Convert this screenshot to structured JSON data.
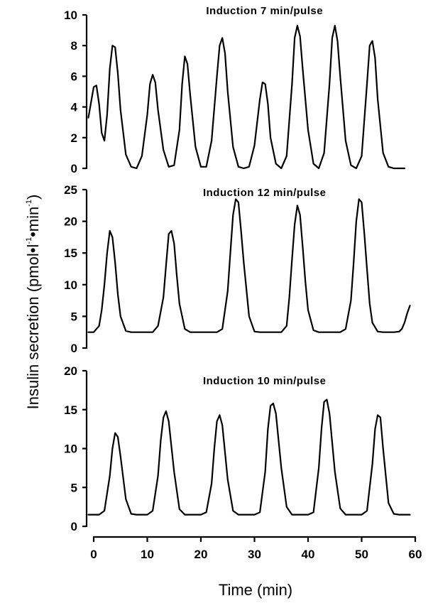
{
  "chart_data": [
    {
      "type": "line",
      "title": "Induction 7 min/pulse",
      "ylim": [
        0,
        10
      ],
      "yticks": [
        0,
        2,
        4,
        6,
        8,
        10
      ],
      "xlim": [
        -1,
        60
      ],
      "series": [
        {
          "x": [
            -1,
            0,
            0.5,
            1,
            1.5,
            2,
            2.5,
            3,
            3.5,
            4,
            4.5,
            5,
            6,
            7,
            8,
            9,
            10,
            10.5,
            11,
            11.5,
            12,
            13,
            14,
            15,
            16,
            16.5,
            17,
            17.5,
            18,
            19,
            20,
            21,
            22,
            23,
            23.5,
            24,
            24.5,
            25,
            26,
            27,
            28,
            29,
            30,
            31,
            31.5,
            32,
            32.5,
            33,
            34,
            35,
            36,
            37,
            37.5,
            38,
            38.5,
            39,
            40,
            41,
            42,
            43,
            44,
            44.5,
            45,
            45.5,
            46,
            47,
            48,
            49,
            50,
            51,
            51.5,
            52,
            52.5,
            53,
            54,
            55,
            56,
            57,
            58
          ],
          "y": [
            3.3,
            5.3,
            5.4,
            4.2,
            2.3,
            1.8,
            3.5,
            6.5,
            8.0,
            7.9,
            6.2,
            3.8,
            0.9,
            0.1,
            0.0,
            0.8,
            3.5,
            5.5,
            6.1,
            5.6,
            3.8,
            1.2,
            0.1,
            0.2,
            2.5,
            5.5,
            7.3,
            6.8,
            4.8,
            1.4,
            0.1,
            0.1,
            1.8,
            6.0,
            8.0,
            8.5,
            7.5,
            5.0,
            1.4,
            0.1,
            0.0,
            0.1,
            1.5,
            4.5,
            5.6,
            5.5,
            4.2,
            2.0,
            0.3,
            0.0,
            0.8,
            5.5,
            8.5,
            9.3,
            8.6,
            6.5,
            2.5,
            0.3,
            0.0,
            1.0,
            5.5,
            8.5,
            9.3,
            8.3,
            6.0,
            1.8,
            0.2,
            0.0,
            0.8,
            5.5,
            8.0,
            8.3,
            7.2,
            4.5,
            1.0,
            0.1,
            0.0,
            0.0,
            0.0
          ]
        }
      ]
    },
    {
      "type": "line",
      "title": "Induction 12 min/pulse",
      "ylim": [
        0,
        25
      ],
      "yticks": [
        0,
        5,
        10,
        15,
        20,
        25
      ],
      "xlim": [
        -1,
        60
      ],
      "series": [
        {
          "x": [
            -1,
            0,
            1,
            1.5,
            2,
            2.5,
            3,
            3.5,
            4,
            4.5,
            5,
            6,
            7,
            8,
            9,
            10,
            11,
            12,
            13,
            13.5,
            14,
            14.5,
            15,
            15.5,
            16,
            17,
            18,
            19,
            20,
            21,
            22,
            23,
            24,
            25,
            25.5,
            26,
            26.5,
            27,
            27.5,
            28,
            29,
            30,
            31,
            32,
            33,
            34,
            35,
            36,
            36.5,
            37,
            37.5,
            38,
            38.5,
            39,
            39.5,
            40,
            41,
            42,
            43,
            44,
            45,
            46,
            47,
            48,
            48.5,
            49,
            49.5,
            50,
            50.5,
            51,
            51.5,
            52,
            53,
            54,
            55,
            56,
            57,
            57.5,
            58,
            58.5,
            59
          ],
          "y": [
            2.5,
            2.5,
            3.5,
            6.0,
            10.0,
            15.0,
            18.5,
            17.5,
            13.5,
            8.5,
            5.0,
            2.7,
            2.5,
            2.5,
            2.5,
            2.5,
            2.5,
            3.5,
            8.0,
            13.0,
            18.0,
            18.5,
            16.5,
            11.5,
            7.0,
            3.0,
            2.5,
            2.5,
            2.5,
            2.5,
            2.5,
            2.5,
            3.0,
            9.0,
            15.0,
            21.0,
            23.5,
            23.0,
            18.5,
            13.5,
            5.0,
            2.6,
            2.5,
            2.5,
            2.5,
            2.5,
            2.5,
            3.5,
            8.0,
            14.0,
            19.5,
            22.5,
            21.0,
            16.0,
            10.5,
            6.0,
            2.8,
            2.5,
            2.5,
            2.5,
            2.5,
            2.5,
            3.0,
            7.5,
            13.5,
            20.0,
            23.5,
            23.0,
            18.0,
            12.5,
            7.0,
            4.0,
            2.6,
            2.5,
            2.5,
            2.5,
            2.6,
            3.0,
            4.0,
            5.5,
            6.7
          ]
        }
      ]
    },
    {
      "type": "line",
      "title": "Induction 10 min/pulse",
      "ylim": [
        0,
        20
      ],
      "yticks": [
        0,
        5,
        10,
        15,
        20
      ],
      "xlim": [
        -1,
        60
      ],
      "xticks": [
        0,
        10,
        20,
        30,
        40,
        50,
        60
      ],
      "xlabel": "Time (min)",
      "series": [
        {
          "x": [
            -1,
            0,
            1,
            2,
            3,
            3.5,
            4,
            4.5,
            5,
            6,
            7,
            8,
            9,
            10,
            11,
            12,
            12.5,
            13,
            13.5,
            14,
            15,
            16,
            17,
            18,
            19,
            20,
            21,
            22,
            22.5,
            23,
            23.5,
            24,
            25,
            26,
            27,
            28,
            29,
            30,
            31,
            32,
            32.5,
            33,
            33.5,
            34,
            35,
            36,
            37,
            38,
            39,
            40,
            41,
            42,
            42.5,
            43,
            43.5,
            44,
            45,
            46,
            47,
            48,
            49,
            50,
            51,
            52,
            52.5,
            53,
            53.5,
            54,
            55,
            56,
            57,
            58,
            59
          ],
          "y": [
            1.5,
            1.5,
            1.5,
            2.0,
            6.5,
            10.0,
            12.0,
            11.5,
            9.0,
            3.5,
            1.6,
            1.5,
            1.5,
            1.5,
            2.0,
            6.5,
            11.0,
            14.0,
            14.8,
            13.5,
            7.0,
            2.2,
            1.5,
            1.5,
            1.5,
            1.5,
            1.8,
            5.5,
            10.0,
            13.5,
            14.3,
            13.0,
            6.0,
            2.0,
            1.5,
            1.5,
            1.5,
            1.5,
            1.8,
            7.0,
            12.5,
            15.5,
            15.8,
            14.5,
            7.5,
            2.5,
            1.5,
            1.5,
            1.5,
            1.5,
            1.8,
            7.5,
            12.5,
            16.0,
            16.3,
            14.5,
            7.0,
            2.3,
            1.5,
            1.5,
            1.5,
            1.5,
            2.0,
            8.0,
            12.5,
            14.3,
            14.0,
            10.0,
            3.0,
            1.6,
            1.5,
            1.5,
            1.5
          ]
        }
      ]
    }
  ],
  "ylabel": {
    "main": "Insulin secretion (pmol",
    "bullet1": "•",
    "unit1": "l",
    "sup1": "-1",
    "bullet2": "•",
    "unit2": "min",
    "sup2": "-1",
    "close": ")"
  }
}
